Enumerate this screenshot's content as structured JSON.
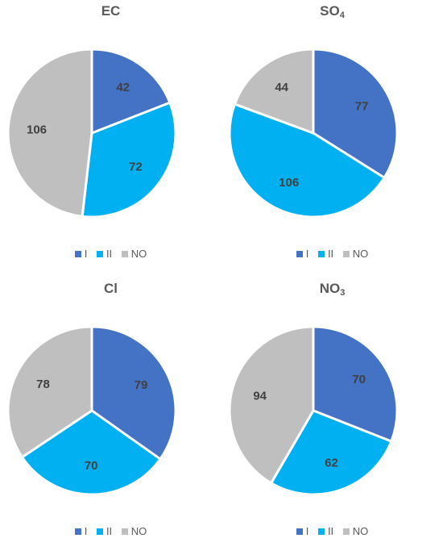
{
  "chart_data": [
    {
      "type": "pie",
      "title": "EC",
      "title_sub": "",
      "categories": [
        "I",
        "II",
        "NO"
      ],
      "values": [
        42,
        72,
        106
      ],
      "colors": [
        "#4472C4",
        "#00B0F0",
        "#BFBFBF"
      ],
      "legend_position": "bottom"
    },
    {
      "type": "pie",
      "title": "SO",
      "title_sub": "4",
      "categories": [
        "I",
        "II",
        "NO"
      ],
      "values": [
        77,
        106,
        44
      ],
      "colors": [
        "#4472C4",
        "#00B0F0",
        "#BFBFBF"
      ],
      "legend_position": "bottom"
    },
    {
      "type": "pie",
      "title": "Cl",
      "title_sub": "",
      "categories": [
        "I",
        "II",
        "NO"
      ],
      "values": [
        79,
        70,
        78
      ],
      "colors": [
        "#4472C4",
        "#00B0F0",
        "#BFBFBF"
      ],
      "legend_position": "bottom"
    },
    {
      "type": "pie",
      "title": "NO",
      "title_sub": "3",
      "categories": [
        "I",
        "II",
        "NO"
      ],
      "values": [
        70,
        62,
        94
      ],
      "colors": [
        "#4472C4",
        "#00B0F0",
        "#BFBFBF"
      ],
      "legend_position": "bottom"
    }
  ]
}
